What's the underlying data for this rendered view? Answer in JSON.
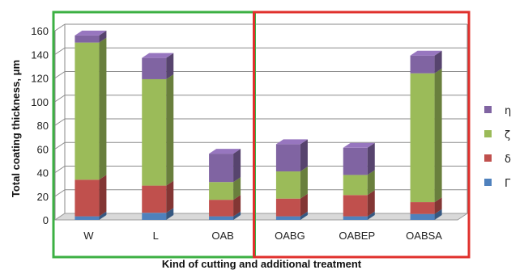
{
  "chart_data": {
    "type": "bar",
    "stacked": true,
    "style": "3d-column",
    "categories": [
      "W",
      "L",
      "OAB",
      "OABG",
      "OABEP",
      "OABSA"
    ],
    "series": [
      {
        "name": "Γ",
        "color": "#4f81bd",
        "values": [
          3,
          6,
          3,
          3,
          3,
          5
        ]
      },
      {
        "name": "δ",
        "color": "#c0504d",
        "values": [
          31,
          23,
          14,
          15,
          18,
          10
        ]
      },
      {
        "name": "ζ",
        "color": "#9bbb59",
        "values": [
          116,
          90,
          15,
          23,
          17,
          109
        ]
      },
      {
        "name": "η",
        "color": "#8064a2",
        "values": [
          6,
          18,
          24,
          23,
          23,
          15
        ]
      }
    ],
    "xlabel": "Kind of cutting and additional treatment",
    "ylabel": "Total coating thickness, μm",
    "ylim": [
      0,
      160
    ],
    "yticks": [
      0,
      20,
      40,
      60,
      80,
      100,
      120,
      140,
      160
    ],
    "grid": true,
    "legend_position": "right",
    "group_boxes": [
      {
        "color": "#3cb043",
        "categories": [
          "W",
          "L",
          "OAB"
        ]
      },
      {
        "color": "#e0302c",
        "categories": [
          "OABG",
          "OABEP",
          "OABSA"
        ]
      }
    ]
  }
}
